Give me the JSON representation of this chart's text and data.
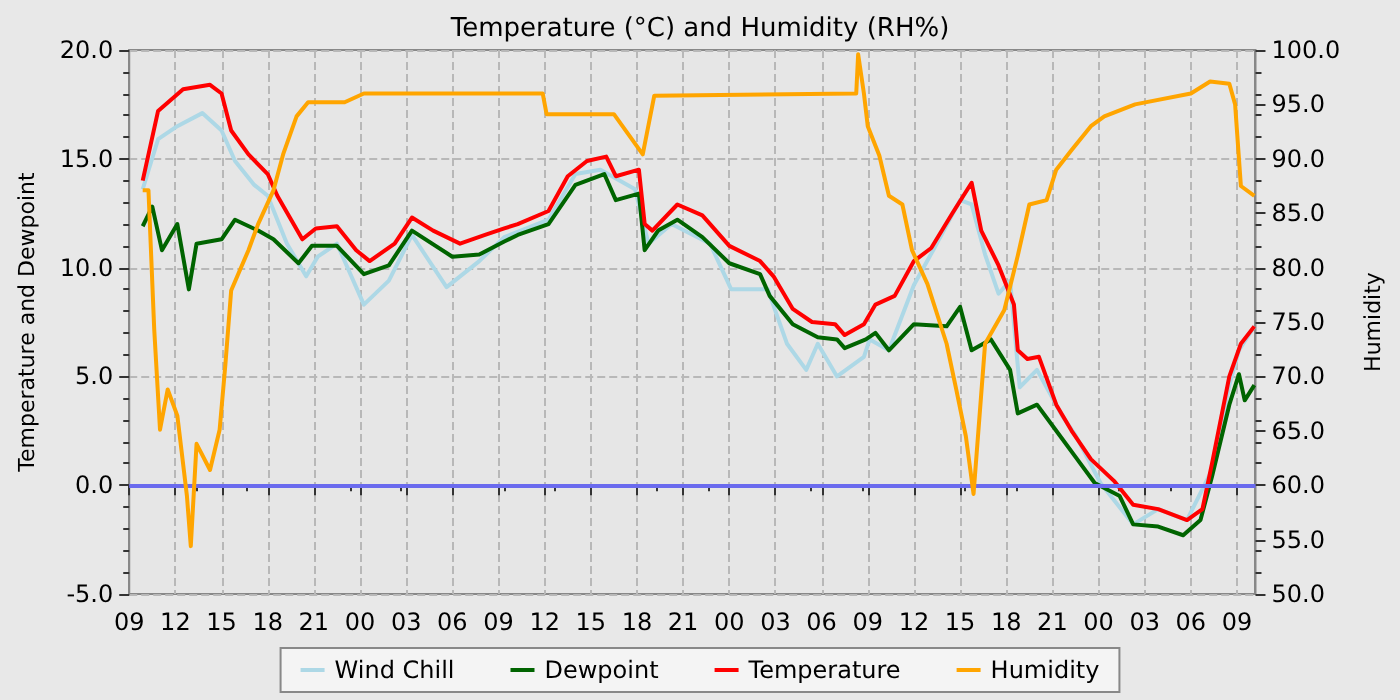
{
  "chart_data": {
    "type": "line",
    "title": "Temperature (°C) and Humidity (RH%)",
    "ylabel": "Temperature and Dewpoint",
    "y2label": "Humidity",
    "xlim": [
      9,
      82.2
    ],
    "xticks": [
      {
        "value": 9,
        "label": "09"
      },
      {
        "value": 12,
        "label": "12"
      },
      {
        "value": 15,
        "label": "15"
      },
      {
        "value": 18,
        "label": "18"
      },
      {
        "value": 21,
        "label": "21"
      },
      {
        "value": 24,
        "label": "00"
      },
      {
        "value": 27,
        "label": "03"
      },
      {
        "value": 30,
        "label": "06"
      },
      {
        "value": 33,
        "label": "09"
      },
      {
        "value": 36,
        "label": "12"
      },
      {
        "value": 39,
        "label": "15"
      },
      {
        "value": 42,
        "label": "18"
      },
      {
        "value": 45,
        "label": "21"
      },
      {
        "value": 48,
        "label": "00"
      },
      {
        "value": 51,
        "label": "03"
      },
      {
        "value": 54,
        "label": "06"
      },
      {
        "value": 57,
        "label": "09"
      },
      {
        "value": 60,
        "label": "12"
      },
      {
        "value": 63,
        "label": "15"
      },
      {
        "value": 66,
        "label": "18"
      },
      {
        "value": 69,
        "label": "21"
      },
      {
        "value": 72,
        "label": "00"
      },
      {
        "value": 75,
        "label": "03"
      },
      {
        "value": 78,
        "label": "06"
      },
      {
        "value": 81,
        "label": "09"
      }
    ],
    "ylim": [
      -5,
      20
    ],
    "yticks": [
      {
        "value": -5,
        "label": "-5.0"
      },
      {
        "value": 0,
        "label": "0.0"
      },
      {
        "value": 5,
        "label": "5.0"
      },
      {
        "value": 10,
        "label": "10.0"
      },
      {
        "value": 15,
        "label": "15.0"
      },
      {
        "value": 20,
        "label": "20.0"
      }
    ],
    "y2lim": [
      50,
      100
    ],
    "y2ticks": [
      {
        "value": 50,
        "label": "50.0"
      },
      {
        "value": 55,
        "label": "55.0"
      },
      {
        "value": 60,
        "label": "60.0"
      },
      {
        "value": 65,
        "label": "65.0"
      },
      {
        "value": 70,
        "label": "70.0"
      },
      {
        "value": 75,
        "label": "75.0"
      },
      {
        "value": 80,
        "label": "80.0"
      },
      {
        "value": 85,
        "label": "85.0"
      },
      {
        "value": 90,
        "label": "90.0"
      },
      {
        "value": 95,
        "label": "95.0"
      },
      {
        "value": 100,
        "label": "100.0"
      }
    ],
    "grid": true,
    "legend": "bottom",
    "marker": "none",
    "line_style": "solid",
    "ref_lines": [
      {
        "axis": "y",
        "value": 0,
        "label": null,
        "color": "#6a6aee"
      }
    ],
    "series": [
      {
        "name": "Wind Chill",
        "color": "#add8e6",
        "x": [
          9.875,
          10.875,
          12.125,
          13.75,
          15.0,
          15.875,
          17.125,
          18.0,
          19.25,
          20.5,
          21.25,
          22.5,
          24.25,
          25.875,
          27.375,
          29.625,
          31.75,
          33.375,
          36.25,
          38.0,
          39.625,
          41.875,
          42.75,
          44.25,
          46.75,
          48.125,
          50.5,
          51.75,
          53.0,
          53.75,
          55.0,
          56.75,
          57.125,
          58.375,
          60.0,
          61.25,
          63.0,
          63.75,
          64.625,
          65.5,
          66.25,
          66.875,
          68.0,
          69.625,
          70.5,
          72.125,
          74.25,
          75.875,
          77.75,
          79.375,
          80.5,
          81.125,
          82.125
        ],
        "values": [
          13.6,
          15.9,
          16.5,
          17.1,
          16.3,
          14.9,
          13.8,
          13.3,
          11.1,
          9.6,
          10.5,
          11.1,
          8.3,
          9.4,
          11.5,
          9.1,
          10.3,
          11.4,
          12.2,
          14.3,
          14.5,
          13.6,
          11.1,
          12.0,
          11.1,
          9.0,
          9.0,
          6.5,
          5.3,
          6.5,
          5.0,
          5.9,
          6.7,
          6.2,
          9.2,
          10.8,
          13.1,
          12.9,
          10.6,
          8.8,
          9.4,
          4.5,
          5.3,
          3.2,
          2.3,
          0.1,
          -1.8,
          -1.1,
          -1.6,
          0.7,
          4.6,
          6.2,
          7.3
        ]
      },
      {
        "name": "Dewpoint",
        "color": "#006400",
        "x": [
          9.875,
          10.5,
          11.125,
          12.125,
          12.875,
          13.375,
          15.0,
          15.875,
          17.375,
          18.375,
          20.0,
          20.875,
          22.5,
          24.25,
          25.875,
          27.375,
          30.0,
          31.75,
          33.375,
          34.25,
          36.25,
          38.0,
          39.875,
          40.625,
          42.125,
          42.5,
          43.375,
          44.625,
          46.25,
          48.0,
          50.0,
          50.625,
          52.125,
          53.75,
          55.0,
          55.5,
          56.875,
          57.5,
          58.375,
          60.0,
          62.125,
          63.0,
          63.75,
          65.0,
          66.25,
          66.75,
          68.0,
          69.25,
          70.5,
          71.75,
          73.375,
          74.25,
          75.875,
          77.5,
          78.625,
          79.375,
          80.5,
          81.125,
          81.5,
          82.125
        ],
        "values": [
          11.9,
          12.8,
          10.8,
          12.0,
          9.0,
          11.1,
          11.3,
          12.2,
          11.7,
          11.3,
          10.2,
          11.0,
          11.0,
          9.7,
          10.1,
          11.7,
          10.5,
          10.6,
          11.2,
          11.5,
          12.0,
          13.8,
          14.3,
          13.1,
          13.4,
          10.8,
          11.7,
          12.2,
          11.4,
          10.2,
          9.7,
          8.7,
          7.4,
          6.8,
          6.7,
          6.3,
          6.7,
          7.0,
          6.2,
          7.4,
          7.3,
          8.2,
          6.2,
          6.7,
          5.3,
          3.3,
          3.7,
          2.5,
          1.3,
          0.1,
          -0.5,
          -1.8,
          -1.9,
          -2.3,
          -1.6,
          0.4,
          3.7,
          5.1,
          3.9,
          4.6
        ]
      },
      {
        "name": "Temperature",
        "color": "#ff0000",
        "x": [
          9.875,
          10.875,
          12.5,
          14.25,
          15.0,
          15.625,
          16.75,
          18.0,
          18.625,
          20.25,
          21.125,
          22.5,
          23.75,
          24.625,
          26.25,
          27.375,
          28.75,
          30.5,
          32.125,
          33.375,
          34.25,
          36.25,
          37.5,
          38.75,
          40.0,
          40.625,
          42.125,
          42.5,
          43.0,
          44.625,
          46.25,
          48.0,
          50.0,
          50.875,
          52.125,
          53.375,
          54.875,
          55.5,
          56.75,
          57.5,
          58.75,
          60.0,
          61.125,
          62.5,
          63.75,
          64.375,
          65.5,
          66.5,
          66.75,
          67.375,
          68.125,
          69.25,
          70.25,
          71.5,
          73.0,
          74.25,
          75.875,
          77.75,
          78.75,
          79.375,
          80.5,
          81.25,
          82.125
        ],
        "values": [
          14.0,
          17.2,
          18.2,
          18.4,
          18.0,
          16.3,
          15.2,
          14.3,
          13.3,
          11.3,
          11.8,
          11.9,
          10.8,
          10.3,
          11.1,
          12.3,
          11.7,
          11.1,
          11.5,
          11.8,
          12.0,
          12.6,
          14.2,
          14.9,
          15.1,
          14.2,
          14.5,
          12.0,
          11.7,
          12.9,
          12.4,
          11.0,
          10.3,
          9.6,
          8.1,
          7.5,
          7.4,
          6.9,
          7.4,
          8.3,
          8.7,
          10.3,
          10.9,
          12.5,
          13.9,
          11.7,
          10.1,
          8.3,
          6.2,
          5.8,
          5.9,
          3.7,
          2.5,
          1.2,
          0.2,
          -0.9,
          -1.1,
          -1.6,
          -1.1,
          1.0,
          5.0,
          6.5,
          7.3
        ]
      },
      {
        "name": "Humidity",
        "color": "#ffa500",
        "axis": "y2",
        "x": [
          9.875,
          10.25,
          10.625,
          11.0,
          11.5,
          12.125,
          12.75,
          13.0,
          13.375,
          14.25,
          14.875,
          15.25,
          15.625,
          16.75,
          17.375,
          18.375,
          19.0,
          19.875,
          20.625,
          23.0,
          24.25,
          35.875,
          36.125,
          40.5,
          42.375,
          43.125,
          56.25,
          56.375,
          56.75,
          57.0,
          57.75,
          58.375,
          59.25,
          59.875,
          60.875,
          62.125,
          62.75,
          63.375,
          63.875,
          64.625,
          65.875,
          66.75,
          67.5,
          68.625,
          69.25,
          70.25,
          71.5,
          72.375,
          74.375,
          78.0,
          79.25,
          80.5,
          80.875,
          81.25,
          82.125
        ],
        "values": [
          87.1,
          87.1,
          74.3,
          65.1,
          68.8,
          66.4,
          59.0,
          54.4,
          63.8,
          61.4,
          65.1,
          71.1,
          77.9,
          81.6,
          84.0,
          87.1,
          90.4,
          93.9,
          95.2,
          95.2,
          96.0,
          96.0,
          94.1,
          94.1,
          90.4,
          95.8,
          96.0,
          99.6,
          96.0,
          93.0,
          90.3,
          86.6,
          85.8,
          81.6,
          78.5,
          73.0,
          68.8,
          64.5,
          59.2,
          73.0,
          76.1,
          81.1,
          85.8,
          86.2,
          89.0,
          90.8,
          93.0,
          93.9,
          95.0,
          96.0,
          97.1,
          96.9,
          95.0,
          87.5,
          86.6
        ]
      }
    ]
  }
}
